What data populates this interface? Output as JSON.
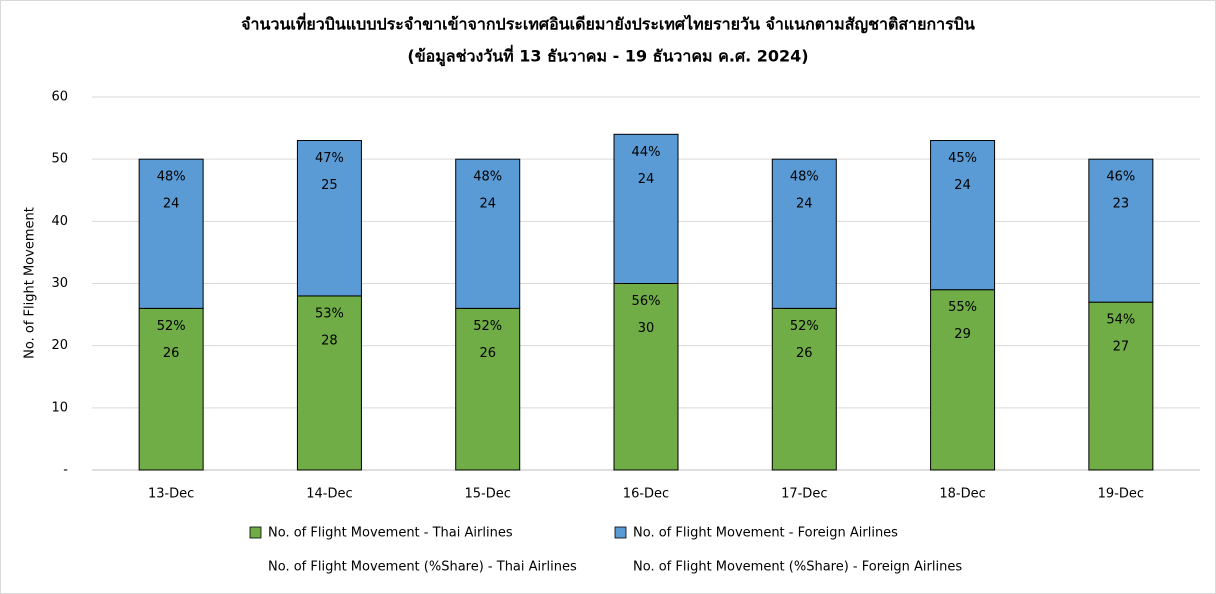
{
  "chart_data": {
    "type": "stacked-bar",
    "title": "จำนวนเที่ยวบินแบบประจำขาเข้าจากประเทศอินเดียมายังประเทศไทยรายวัน  จำแนกตามสัญชาติสายการบิน",
    "subtitle": "(ข้อมูลช่วงวันที่ 13 ธันวาคม - 19 ธันวาคม ค.ศ. 2024)",
    "y_label": "No. of Flight Movement",
    "categories": [
      "13-Dec",
      "14-Dec",
      "15-Dec",
      "16-Dec",
      "17-Dec",
      "18-Dec",
      "19-Dec"
    ],
    "series": [
      {
        "name": "No. of Flight Movement - Thai Airlines",
        "color": "#70ad47",
        "values": [
          26,
          28,
          26,
          30,
          26,
          29,
          27
        ]
      },
      {
        "name": "No. of Flight Movement - Foreign Airlines",
        "color": "#5b9bd5",
        "values": [
          24,
          25,
          24,
          24,
          24,
          24,
          23
        ]
      }
    ],
    "share_series": [
      {
        "name": "No. of Flight Movement (%Share) - Thai Airlines",
        "values": [
          52,
          53,
          52,
          56,
          52,
          55,
          54
        ],
        "value_labels": [
          "52%",
          "53%",
          "52%",
          "56%",
          "52%",
          "55%",
          "54%"
        ]
      },
      {
        "name": "No. of Flight Movement (%Share) - Foreign Airlines",
        "values": [
          48,
          47,
          48,
          44,
          48,
          45,
          46
        ],
        "value_labels": [
          "48%",
          "47%",
          "48%",
          "44%",
          "48%",
          "45%",
          "46%"
        ]
      }
    ],
    "ylim": [
      0,
      60
    ],
    "yticks": [
      {
        "value": 0,
        "label": "-"
      },
      10,
      20,
      30,
      40,
      50,
      60
    ],
    "grid": true
  }
}
